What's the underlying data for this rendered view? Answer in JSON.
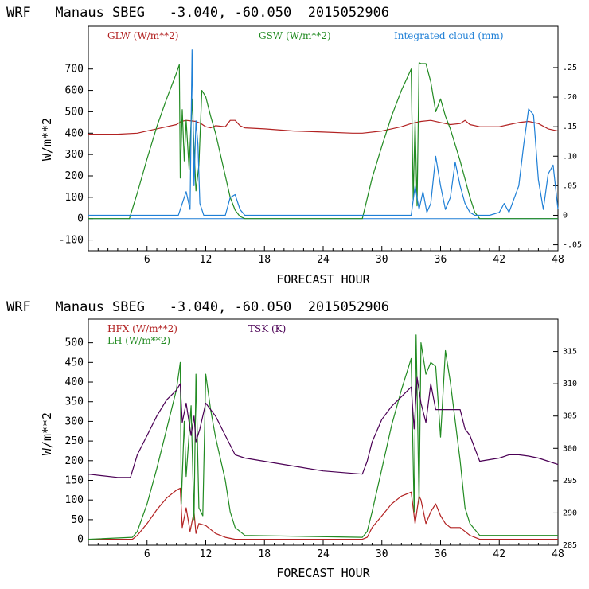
{
  "chart_data": [
    {
      "type": "line",
      "title": "WRF   Manaus SBEG   -3.040, -60.050  2015052906",
      "xlabel": "FORECAST HOUR",
      "ylabel": "W/m**2",
      "xlim": [
        0,
        48
      ],
      "ylim": [
        -150,
        900
      ],
      "xticks": [
        "6",
        "12",
        "18",
        "24",
        "30",
        "36",
        "42",
        "48"
      ],
      "yticks": [
        "-100",
        "0",
        "100",
        "200",
        "300",
        "400",
        "500",
        "600",
        "700"
      ],
      "y2lim": [
        -0.06,
        0.32
      ],
      "y2ticks": [
        "-.05",
        "0",
        ".05",
        ".10",
        ".15",
        ".20",
        ".25"
      ],
      "series": [
        {
          "name": "GLW (W/m**2)",
          "axis": "left",
          "color": "#b22222",
          "x": [
            0,
            3,
            5,
            6,
            7,
            8,
            9,
            9.5,
            10,
            11,
            11.5,
            12,
            12.5,
            13,
            14,
            14.5,
            15,
            15.5,
            16,
            18,
            21,
            24,
            27,
            28,
            30,
            32,
            33,
            34,
            35,
            36,
            37,
            38,
            38.5,
            39,
            40,
            42,
            43,
            44,
            45,
            46,
            47,
            48
          ],
          "y": [
            395,
            395,
            400,
            410,
            420,
            430,
            440,
            455,
            460,
            455,
            445,
            430,
            425,
            435,
            430,
            460,
            460,
            435,
            425,
            420,
            410,
            405,
            400,
            400,
            410,
            430,
            445,
            455,
            460,
            450,
            440,
            445,
            460,
            440,
            430,
            430,
            440,
            450,
            455,
            445,
            420,
            410
          ]
        },
        {
          "name": "GSW (W/m**2)",
          "axis": "left",
          "color": "#228b22",
          "x": [
            0,
            4.2,
            5,
            6,
            7,
            8,
            9,
            9.3,
            9.4,
            9.6,
            9.8,
            10.0,
            10.3,
            10.6,
            10.8,
            11.0,
            11.3,
            11.6,
            12.0,
            12.5,
            13,
            14,
            14.5,
            15,
            15.5,
            16,
            28,
            29,
            30,
            31,
            32,
            33,
            33.2,
            33.4,
            33.6,
            33.8,
            34.0,
            34.5,
            35,
            35.5,
            36,
            36.5,
            37,
            38,
            39,
            39.5,
            40,
            48
          ],
          "y": [
            0,
            0,
            120,
            280,
            430,
            560,
            680,
            720,
            190,
            510,
            270,
            460,
            230,
            560,
            330,
            130,
            250,
            600,
            570,
            480,
            400,
            200,
            100,
            40,
            10,
            0,
            0,
            190,
            340,
            480,
            600,
            700,
            90,
            460,
            60,
            730,
            725,
            725,
            640,
            500,
            560,
            480,
            420,
            270,
            100,
            30,
            0,
            0
          ]
        },
        {
          "name": "Integrated cloud (mm)",
          "axis": "right",
          "color": "#1e7fd6",
          "x": [
            0,
            9.2,
            9.6,
            10.0,
            10.4,
            10.6,
            10.8,
            11.0,
            11.2,
            11.4,
            11.6,
            11.8,
            12,
            14,
            14.5,
            15,
            15.5,
            16,
            33,
            33.4,
            33.8,
            34.2,
            34.6,
            35,
            35.5,
            36,
            36.5,
            37,
            37.5,
            38,
            38.5,
            39,
            39.5,
            40,
            41,
            42,
            42.5,
            43,
            44,
            44.5,
            45,
            45.5,
            46,
            46.5,
            47,
            47.5,
            48
          ],
          "y": [
            0,
            0,
            0.02,
            0.04,
            0.01,
            0.28,
            0.05,
            0.16,
            0.12,
            0.02,
            0.01,
            0,
            0,
            0,
            0.03,
            0.035,
            0.01,
            0,
            0,
            0.05,
            0.01,
            0.04,
            0.005,
            0.02,
            0.1,
            0.05,
            0.01,
            0.03,
            0.09,
            0.05,
            0.02,
            0.005,
            0,
            0,
            0,
            0.005,
            0.02,
            0.005,
            0.05,
            0.12,
            0.18,
            0.17,
            0.06,
            0.01,
            0.07,
            0.085,
            0.01
          ]
        }
      ]
    },
    {
      "type": "line",
      "title": "WRF   Manaus SBEG   -3.040, -60.050  2015052906",
      "xlabel": "FORECAST HOUR",
      "ylabel": "W/m**2",
      "xlim": [
        0,
        48
      ],
      "ylim": [
        -15,
        560
      ],
      "xticks": [
        "6",
        "12",
        "18",
        "24",
        "30",
        "36",
        "42",
        "48"
      ],
      "yticks": [
        "0",
        "50",
        "100",
        "150",
        "200",
        "250",
        "300",
        "350",
        "400",
        "450",
        "500"
      ],
      "y2lim": [
        285,
        320
      ],
      "y2ticks": [
        "285",
        "290",
        "295",
        "300",
        "305",
        "310",
        "315"
      ],
      "series": [
        {
          "name": "HFX (W/m**2)",
          "axis": "left",
          "color": "#b22222",
          "x": [
            0,
            4.5,
            5,
            6,
            7,
            8,
            9,
            9.4,
            9.6,
            10,
            10.4,
            10.8,
            11.0,
            11.3,
            12,
            12.5,
            13,
            14,
            15,
            16,
            28,
            28.5,
            29,
            30,
            31,
            32,
            33,
            33.4,
            33.8,
            34.0,
            34.5,
            35,
            35.5,
            36,
            36.5,
            37,
            38,
            39,
            40,
            42,
            48
          ],
          "y": [
            0,
            0,
            10,
            40,
            75,
            105,
            125,
            130,
            30,
            80,
            20,
            70,
            15,
            40,
            35,
            25,
            15,
            5,
            0,
            0,
            0,
            5,
            30,
            60,
            90,
            110,
            120,
            40,
            110,
            100,
            40,
            70,
            90,
            60,
            40,
            30,
            30,
            10,
            0,
            0,
            0
          ]
        },
        {
          "name": "LH (W/m**2)",
          "axis": "left",
          "color": "#228b22",
          "x": [
            0,
            4.5,
            5,
            6,
            7,
            8,
            9,
            9.4,
            9.5,
            9.8,
            10,
            10.5,
            10.8,
            11.0,
            11.3,
            11.7,
            12,
            12.5,
            13,
            14,
            14.5,
            15,
            16,
            28,
            28.5,
            29,
            30,
            31,
            32,
            33,
            33.3,
            33.5,
            33.8,
            34.0,
            34.5,
            35,
            35.5,
            36,
            36.5,
            37,
            38,
            38.5,
            39,
            40,
            48
          ],
          "y": [
            0,
            5,
            20,
            90,
            180,
            280,
            380,
            450,
            90,
            300,
            160,
            340,
            50,
            420,
            80,
            60,
            420,
            330,
            260,
            150,
            70,
            30,
            10,
            5,
            20,
            70,
            180,
            290,
            380,
            460,
            70,
            520,
            90,
            500,
            420,
            450,
            440,
            260,
            480,
            400,
            200,
            80,
            40,
            10,
            10
          ]
        },
        {
          "name": "TSK (K)",
          "axis": "right",
          "color": "#4b0055",
          "x": [
            0,
            3,
            4.3,
            5,
            6,
            7,
            8,
            9,
            9.4,
            9.6,
            10,
            10.5,
            10.8,
            11,
            11.4,
            12,
            12.5,
            13,
            14,
            15,
            16,
            20,
            24,
            28,
            28.5,
            29,
            30,
            31,
            32,
            33,
            33.3,
            33.6,
            34,
            34.5,
            35,
            35.5,
            36,
            37,
            38,
            38.5,
            39,
            40,
            42,
            43,
            44,
            45,
            46,
            47,
            48
          ],
          "y": [
            296,
            295.5,
            295.5,
            299,
            302,
            305,
            307.5,
            309,
            310,
            304,
            307,
            302,
            305,
            301,
            303,
            307,
            306,
            305,
            302,
            299,
            298.5,
            297.5,
            296.5,
            296,
            298,
            301,
            304.5,
            306.5,
            308,
            309.5,
            303,
            311,
            307,
            304,
            310,
            306,
            306,
            306,
            306,
            303,
            302,
            298,
            298.5,
            299,
            299,
            298.8,
            298.5,
            298,
            297.5
          ]
        }
      ]
    }
  ]
}
